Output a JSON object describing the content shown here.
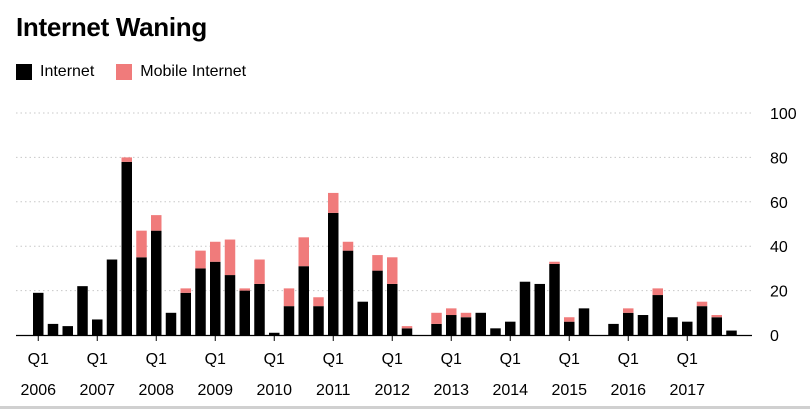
{
  "title": "Internet Waning",
  "legend": [
    {
      "label": "Internet",
      "color": "#000000"
    },
    {
      "label": "Mobile Internet",
      "color": "#f07b7b"
    }
  ],
  "chart_data": {
    "type": "bar",
    "stacked": true,
    "title": "Internet Waning",
    "xlabel": "",
    "ylabel": "",
    "ylim": [
      0,
      100
    ],
    "yticks": [
      0,
      20,
      40,
      60,
      80,
      100
    ],
    "x_tick_labels": [
      {
        "quarter": "Q1",
        "year": "2006",
        "index": 0
      },
      {
        "quarter": "Q1",
        "year": "2007",
        "index": 4
      },
      {
        "quarter": "Q1",
        "year": "2008",
        "index": 8
      },
      {
        "quarter": "Q1",
        "year": "2009",
        "index": 12
      },
      {
        "quarter": "Q1",
        "year": "2010",
        "index": 16
      },
      {
        "quarter": "Q1",
        "year": "2011",
        "index": 20
      },
      {
        "quarter": "Q1",
        "year": "2012",
        "index": 24
      },
      {
        "quarter": "Q1",
        "year": "2013",
        "index": 28
      },
      {
        "quarter": "Q1",
        "year": "2014",
        "index": 32
      },
      {
        "quarter": "Q1",
        "year": "2015",
        "index": 36
      },
      {
        "quarter": "Q1",
        "year": "2016",
        "index": 40
      },
      {
        "quarter": "Q1",
        "year": "2017",
        "index": 44
      }
    ],
    "series": [
      {
        "name": "Internet",
        "color": "#000000",
        "values": [
          19,
          5,
          4,
          22,
          7,
          34,
          78,
          35,
          47,
          10,
          19,
          30,
          33,
          27,
          20,
          23,
          1,
          13,
          31,
          13,
          55,
          38,
          15,
          29,
          23,
          3,
          0,
          5,
          9,
          8,
          10,
          3,
          6,
          24,
          23,
          32,
          6,
          12,
          0,
          5,
          10,
          9,
          18,
          8,
          6,
          13,
          8,
          2
        ]
      },
      {
        "name": "Mobile Internet",
        "color": "#f07b7b",
        "values": [
          0,
          0,
          0,
          0,
          0,
          0,
          2,
          12,
          7,
          0,
          2,
          8,
          9,
          16,
          1,
          11,
          0,
          8,
          13,
          4,
          9,
          4,
          0,
          7,
          12,
          1,
          0,
          5,
          3,
          2,
          0,
          0,
          0,
          0,
          0,
          1,
          2,
          0,
          0,
          0,
          2,
          0,
          3,
          0,
          0,
          2,
          1,
          0
        ]
      }
    ]
  }
}
